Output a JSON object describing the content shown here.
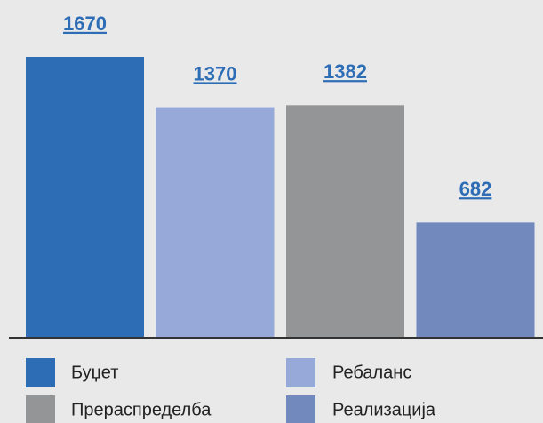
{
  "chart_data": {
    "type": "bar",
    "categories": [
      "Буџет",
      "Ребаланс",
      "Прераспределба",
      "Реализација"
    ],
    "values": [
      1670,
      1370,
      1382,
      682
    ],
    "colors": [
      "#2d6db5",
      "#96a9d8",
      "#939597",
      "#7289bd"
    ],
    "label_color": "#2d6db5",
    "legend": "bottom"
  }
}
